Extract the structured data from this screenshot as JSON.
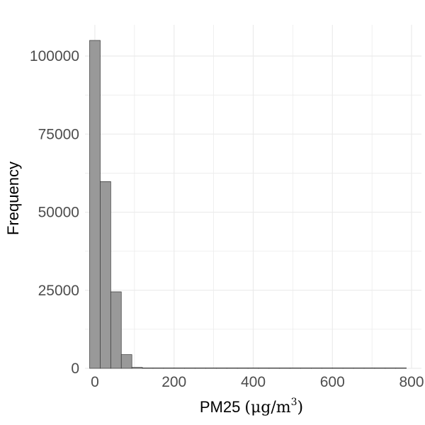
{
  "chart_data": {
    "type": "bar",
    "subtype": "histogram",
    "title": "",
    "xlabel": "PM25",
    "xlabel_unit": {
      "open": "(",
      "mu": "μg",
      "slash": "/",
      "base": "m",
      "exp": "3",
      "close": ")"
    },
    "ylabel": "Frequency",
    "xlim": [
      -25,
      825
    ],
    "ylim": [
      0,
      110000
    ],
    "x_ticks": [
      0,
      200,
      400,
      600,
      800
    ],
    "x_tick_labels": [
      "0",
      "200",
      "400",
      "600",
      "800"
    ],
    "y_ticks": [
      0,
      25000,
      50000,
      75000,
      100000
    ],
    "y_tick_labels": [
      "0",
      "25000",
      "50000",
      "75000",
      "100000"
    ],
    "x_minor_ticks": [
      100,
      300,
      500,
      700
    ],
    "y_minor_ticks": [
      12500,
      37500,
      62500,
      87500
    ],
    "grid": true,
    "bin_width": 26.7,
    "bin_edges": [
      -13.3,
      13.3,
      40,
      66.7,
      93.3,
      120,
      146.7,
      173.3,
      200,
      226.7,
      253.3,
      280,
      306.7,
      333.3,
      360,
      386.7,
      413.3,
      440,
      466.7,
      493.3,
      520,
      546.7,
      573.3,
      600,
      626.7,
      653.3,
      680,
      706.7,
      733.3,
      760,
      786.7
    ],
    "values": [
      105000,
      59800,
      24500,
      4400,
      300,
      60,
      30,
      20,
      15,
      10,
      8,
      6,
      5,
      4,
      4,
      3,
      3,
      2,
      2,
      2,
      2,
      1,
      1,
      1,
      1,
      1,
      1,
      1,
      1,
      1
    ],
    "bar_fill": "#999999",
    "bar_stroke": "#333333",
    "grid_color": "#ebebeb"
  }
}
